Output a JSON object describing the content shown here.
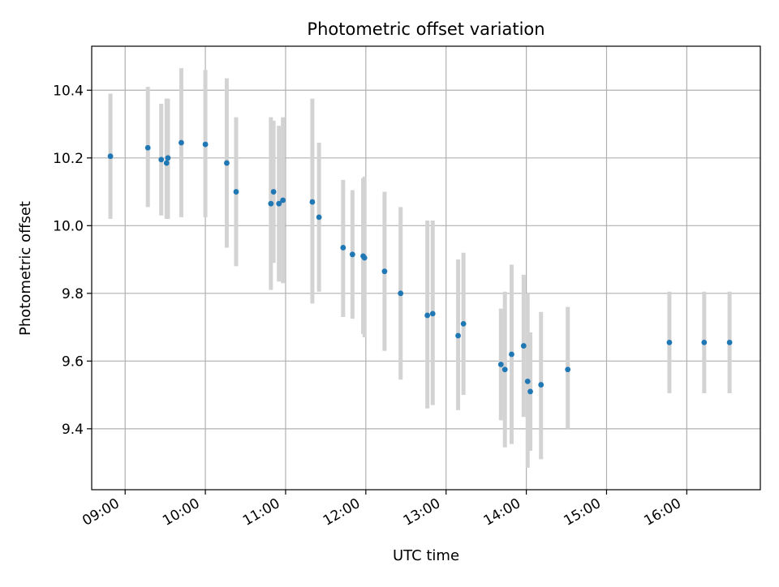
{
  "chart_data": {
    "type": "scatter",
    "title": "Photometric offset variation",
    "xlabel": "UTC time",
    "ylabel": "Photometric offset",
    "grid": true,
    "x_range": [
      "08:35",
      "16:55"
    ],
    "ylim": [
      9.22,
      10.53
    ],
    "x_ticks": [
      "09:00",
      "10:00",
      "11:00",
      "12:00",
      "13:00",
      "14:00",
      "15:00",
      "16:00"
    ],
    "y_ticks": [
      "9.4",
      "9.6",
      "9.8",
      "10.0",
      "10.2",
      "10.4"
    ],
    "colors": {
      "points": "#1f77b4",
      "errorbars": "#d3d3d3",
      "grid": "#b0b0b0"
    },
    "points": [
      {
        "x": "08:49",
        "y": 10.205,
        "ylow": 10.02,
        "yhigh": 10.39
      },
      {
        "x": "09:17",
        "y": 10.23,
        "ylow": 10.055,
        "yhigh": 10.41
      },
      {
        "x": "09:27",
        "y": 10.195,
        "ylow": 10.03,
        "yhigh": 10.36
      },
      {
        "x": "09:31",
        "y": 10.185,
        "ylow": 10.02,
        "yhigh": 10.375
      },
      {
        "x": "09:32",
        "y": 10.2,
        "ylow": 10.02,
        "yhigh": 10.375
      },
      {
        "x": "09:42",
        "y": 10.245,
        "ylow": 10.025,
        "yhigh": 10.465
      },
      {
        "x": "10:00",
        "y": 10.24,
        "ylow": 10.025,
        "yhigh": 10.46
      },
      {
        "x": "10:16",
        "y": 10.185,
        "ylow": 9.935,
        "yhigh": 10.435
      },
      {
        "x": "10:23",
        "y": 10.1,
        "ylow": 9.88,
        "yhigh": 10.32
      },
      {
        "x": "10:49",
        "y": 10.065,
        "ylow": 9.81,
        "yhigh": 10.32
      },
      {
        "x": "10:51",
        "y": 10.1,
        "ylow": 9.89,
        "yhigh": 10.31
      },
      {
        "x": "10:55",
        "y": 10.065,
        "ylow": 9.835,
        "yhigh": 10.295
      },
      {
        "x": "10:58",
        "y": 10.075,
        "ylow": 9.83,
        "yhigh": 10.32
      },
      {
        "x": "11:20",
        "y": 10.07,
        "ylow": 9.77,
        "yhigh": 10.375
      },
      {
        "x": "11:25",
        "y": 10.025,
        "ylow": 9.805,
        "yhigh": 10.245
      },
      {
        "x": "11:43",
        "y": 9.935,
        "ylow": 9.73,
        "yhigh": 10.135
      },
      {
        "x": "11:50",
        "y": 9.915,
        "ylow": 9.725,
        "yhigh": 10.105
      },
      {
        "x": "11:58",
        "y": 9.91,
        "ylow": 9.68,
        "yhigh": 10.14
      },
      {
        "x": "11:59",
        "y": 9.905,
        "ylow": 9.67,
        "yhigh": 10.145
      },
      {
        "x": "12:14",
        "y": 9.865,
        "ylow": 9.63,
        "yhigh": 10.1
      },
      {
        "x": "12:26",
        "y": 9.8,
        "ylow": 9.545,
        "yhigh": 10.055
      },
      {
        "x": "12:46",
        "y": 9.735,
        "ylow": 9.46,
        "yhigh": 10.015
      },
      {
        "x": "12:50",
        "y": 9.74,
        "ylow": 9.47,
        "yhigh": 10.015
      },
      {
        "x": "13:09",
        "y": 9.675,
        "ylow": 9.455,
        "yhigh": 9.9
      },
      {
        "x": "13:13",
        "y": 9.71,
        "ylow": 9.5,
        "yhigh": 9.92
      },
      {
        "x": "13:41",
        "y": 9.59,
        "ylow": 9.425,
        "yhigh": 9.755
      },
      {
        "x": "13:44",
        "y": 9.575,
        "ylow": 9.345,
        "yhigh": 9.805
      },
      {
        "x": "13:49",
        "y": 9.62,
        "ylow": 9.355,
        "yhigh": 9.885
      },
      {
        "x": "13:58",
        "y": 9.645,
        "ylow": 9.435,
        "yhigh": 9.855
      },
      {
        "x": "14:01",
        "y": 9.54,
        "ylow": 9.285,
        "yhigh": 9.8
      },
      {
        "x": "14:03",
        "y": 9.51,
        "ylow": 9.335,
        "yhigh": 9.685
      },
      {
        "x": "14:11",
        "y": 9.53,
        "ylow": 9.31,
        "yhigh": 9.745
      },
      {
        "x": "14:31",
        "y": 9.575,
        "ylow": 9.4,
        "yhigh": 9.76
      },
      {
        "x": "15:47",
        "y": 9.655,
        "ylow": 9.505,
        "yhigh": 9.805
      },
      {
        "x": "16:13",
        "y": 9.655,
        "ylow": 9.505,
        "yhigh": 9.805
      },
      {
        "x": "16:32",
        "y": 9.655,
        "ylow": 9.505,
        "yhigh": 9.805
      }
    ]
  }
}
